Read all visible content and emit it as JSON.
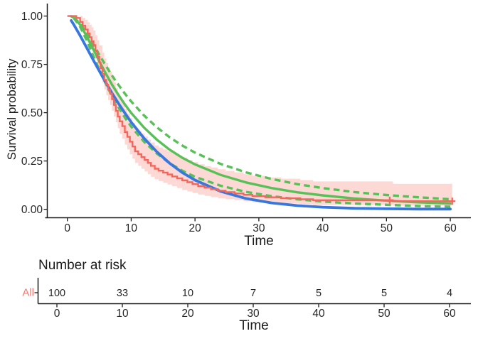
{
  "figure": {
    "y_axis": {
      "title": "Survival probability",
      "tick_labels": [
        "0.00",
        "0.25",
        "0.50",
        "0.75",
        "1.00"
      ],
      "tick_values": [
        0,
        0.25,
        0.5,
        0.75,
        1.0
      ]
    },
    "x_axis": {
      "title": "Time",
      "tick_labels": [
        "0",
        "10",
        "20",
        "30",
        "40",
        "50",
        "60"
      ],
      "tick_values": [
        0,
        10,
        20,
        30,
        40,
        50,
        60
      ]
    },
    "risk_table": {
      "title": "Number at risk",
      "row_label": "All",
      "values": [
        "100",
        "33",
        "10",
        "7",
        "5",
        "5",
        "4"
      ],
      "value_times": [
        0,
        10,
        20,
        30,
        40,
        50,
        60
      ],
      "x_axis_title": "Time",
      "tick_labels": [
        "0",
        "10",
        "20",
        "30",
        "40",
        "50",
        "60"
      ]
    },
    "colors": {
      "km_line": "#F4655C",
      "km_label": "#F8766D",
      "ci_fill": "#F8766D",
      "ci_opacity": 0.28,
      "fit_blue": "#3777DE",
      "fit_green": "#57C157",
      "axis": "#1a1a1a",
      "tick_text": "#262626"
    }
  },
  "chart_data": {
    "type": "line",
    "title": "",
    "xlabel": "Time",
    "ylabel": "Survival probability",
    "xlim": [
      0,
      60
    ],
    "ylim": [
      0,
      1
    ],
    "x_ticks": [
      0,
      10,
      20,
      30,
      40,
      50,
      60
    ],
    "y_ticks": [
      0,
      0.25,
      0.5,
      0.75,
      1.0
    ],
    "grid": false,
    "legend": "none",
    "series": [
      {
        "name": "kaplan-meier-estimate",
        "style": "step",
        "color": "#F4655C",
        "points": [
          [
            0,
            1
          ],
          [
            1.4,
            0.99
          ],
          [
            2,
            0.97
          ],
          [
            2.4,
            0.95
          ],
          [
            2.8,
            0.93
          ],
          [
            3.2,
            0.91
          ],
          [
            3.5,
            0.89
          ],
          [
            3.8,
            0.87
          ],
          [
            4.1,
            0.85
          ],
          [
            4.4,
            0.82
          ],
          [
            4.7,
            0.79
          ],
          [
            5,
            0.76
          ],
          [
            5.2,
            0.73
          ],
          [
            5.5,
            0.7
          ],
          [
            5.8,
            0.67
          ],
          [
            6.1,
            0.645
          ],
          [
            6.4,
            0.62
          ],
          [
            6.7,
            0.6
          ],
          [
            7,
            0.57
          ],
          [
            7.3,
            0.54
          ],
          [
            7.6,
            0.51
          ],
          [
            7.9,
            0.48
          ],
          [
            8.2,
            0.455
          ],
          [
            8.6,
            0.43
          ],
          [
            9,
            0.4
          ],
          [
            9.4,
            0.375
          ],
          [
            9.8,
            0.35
          ],
          [
            10.2,
            0.325
          ],
          [
            10.6,
            0.3
          ],
          [
            11.1,
            0.285
          ],
          [
            11.6,
            0.27
          ],
          [
            12.1,
            0.255
          ],
          [
            12.6,
            0.24
          ],
          [
            13.1,
            0.225
          ],
          [
            13.7,
            0.21
          ],
          [
            14.3,
            0.2
          ],
          [
            15,
            0.19
          ],
          [
            15.7,
            0.18
          ],
          [
            16.4,
            0.17
          ],
          [
            17.2,
            0.16
          ],
          [
            18,
            0.15
          ],
          [
            18.8,
            0.14
          ],
          [
            19.6,
            0.13
          ],
          [
            20.5,
            0.12
          ],
          [
            21.5,
            0.112
          ],
          [
            22.5,
            0.104
          ],
          [
            23.6,
            0.096
          ],
          [
            24.8,
            0.089
          ],
          [
            26.2,
            0.082
          ],
          [
            27.6,
            0.075
          ],
          [
            29,
            0.068
          ],
          [
            31,
            0.062
          ],
          [
            33.5,
            0.057
          ],
          [
            36.5,
            0.052
          ],
          [
            38.5,
            0.047
          ],
          [
            51,
            0.042
          ],
          [
            60.3,
            0.042
          ]
        ],
        "censor_marks": [
          [
            50.5,
            0.047
          ],
          [
            60.3,
            0.042
          ]
        ]
      },
      {
        "name": "kaplan-meier-confidence-band",
        "style": "step-band",
        "color": "#F8766D",
        "opacity": 0.28,
        "upper": [
          [
            0,
            1
          ],
          [
            2,
            1
          ],
          [
            2.4,
            0.99
          ],
          [
            2.8,
            0.98
          ],
          [
            3.2,
            0.968
          ],
          [
            3.5,
            0.955
          ],
          [
            3.8,
            0.942
          ],
          [
            4.1,
            0.925
          ],
          [
            4.4,
            0.9
          ],
          [
            4.7,
            0.875
          ],
          [
            5,
            0.848
          ],
          [
            5.5,
            0.81
          ],
          [
            5.8,
            0.78
          ],
          [
            6.1,
            0.757
          ],
          [
            6.4,
            0.735
          ],
          [
            6.7,
            0.713
          ],
          [
            7,
            0.685
          ],
          [
            7.3,
            0.657
          ],
          [
            7.6,
            0.628
          ],
          [
            7.9,
            0.598
          ],
          [
            8.2,
            0.573
          ],
          [
            8.6,
            0.548
          ],
          [
            9,
            0.52
          ],
          [
            9.4,
            0.496
          ],
          [
            9.8,
            0.472
          ],
          [
            10.2,
            0.447
          ],
          [
            10.6,
            0.422
          ],
          [
            11.1,
            0.407
          ],
          [
            11.6,
            0.392
          ],
          [
            12.1,
            0.377
          ],
          [
            12.6,
            0.361
          ],
          [
            13.1,
            0.346
          ],
          [
            13.7,
            0.33
          ],
          [
            14.3,
            0.32
          ],
          [
            15,
            0.31
          ],
          [
            15.7,
            0.3
          ],
          [
            16.4,
            0.289
          ],
          [
            17.2,
            0.278
          ],
          [
            18,
            0.267
          ],
          [
            18.8,
            0.256
          ],
          [
            19.6,
            0.244
          ],
          [
            20.5,
            0.233
          ],
          [
            21.5,
            0.224
          ],
          [
            22.5,
            0.216
          ],
          [
            23.6,
            0.207
          ],
          [
            24.8,
            0.199
          ],
          [
            26.2,
            0.191
          ],
          [
            27.6,
            0.182
          ],
          [
            29,
            0.173
          ],
          [
            31,
            0.165
          ],
          [
            33.5,
            0.158
          ],
          [
            36.5,
            0.151
          ],
          [
            38.5,
            0.144
          ],
          [
            51,
            0.132
          ],
          [
            60.3,
            0.132
          ]
        ],
        "lower": [
          [
            0,
            1
          ],
          [
            2,
            0.94
          ],
          [
            2.4,
            0.925
          ],
          [
            2.8,
            0.905
          ],
          [
            3.2,
            0.885
          ],
          [
            3.5,
            0.863
          ],
          [
            3.8,
            0.84
          ],
          [
            4.1,
            0.815
          ],
          [
            4.4,
            0.78
          ],
          [
            4.7,
            0.745
          ],
          [
            5,
            0.71
          ],
          [
            5.5,
            0.655
          ],
          [
            5.8,
            0.62
          ],
          [
            6.1,
            0.59
          ],
          [
            6.4,
            0.565
          ],
          [
            6.7,
            0.54
          ],
          [
            7,
            0.51
          ],
          [
            7.3,
            0.48
          ],
          [
            7.6,
            0.45
          ],
          [
            7.9,
            0.42
          ],
          [
            8.2,
            0.39
          ],
          [
            8.6,
            0.365
          ],
          [
            9,
            0.335
          ],
          [
            9.4,
            0.31
          ],
          [
            9.8,
            0.285
          ],
          [
            10.2,
            0.262
          ],
          [
            10.6,
            0.24
          ],
          [
            11.1,
            0.225
          ],
          [
            11.6,
            0.21
          ],
          [
            12.1,
            0.196
          ],
          [
            12.6,
            0.182
          ],
          [
            13.1,
            0.168
          ],
          [
            13.7,
            0.155
          ],
          [
            14.3,
            0.146
          ],
          [
            15,
            0.137
          ],
          [
            15.7,
            0.128
          ],
          [
            16.4,
            0.119
          ],
          [
            17.2,
            0.11
          ],
          [
            18,
            0.101
          ],
          [
            18.8,
            0.092
          ],
          [
            19.6,
            0.084
          ],
          [
            20.5,
            0.076
          ],
          [
            21.5,
            0.069
          ],
          [
            22.5,
            0.063
          ],
          [
            23.6,
            0.057
          ],
          [
            24.8,
            0.052
          ],
          [
            26.2,
            0.047
          ],
          [
            27.6,
            0.042
          ],
          [
            29,
            0.037
          ],
          [
            31,
            0.033
          ],
          [
            33.5,
            0.029
          ],
          [
            36.5,
            0.026
          ],
          [
            38.5,
            0.022
          ],
          [
            51,
            0.019
          ],
          [
            60.3,
            0.019
          ]
        ]
      },
      {
        "name": "parametric-fit-blue",
        "style": "smooth",
        "color": "#3777DE",
        "width": 3.8,
        "points": [
          [
            0.6,
            0.977
          ],
          [
            1,
            0.956
          ],
          [
            2,
            0.899
          ],
          [
            3,
            0.838
          ],
          [
            4,
            0.776
          ],
          [
            5,
            0.716
          ],
          [
            6,
            0.657
          ],
          [
            7,
            0.601
          ],
          [
            8,
            0.548
          ],
          [
            9,
            0.498
          ],
          [
            10,
            0.451
          ],
          [
            12,
            0.368
          ],
          [
            14,
            0.298
          ],
          [
            16,
            0.239
          ],
          [
            18,
            0.19
          ],
          [
            20,
            0.151
          ],
          [
            24,
            0.093
          ],
          [
            28,
            0.056
          ],
          [
            32,
            0.033
          ],
          [
            36,
            0.019
          ],
          [
            40,
            0.011
          ],
          [
            45,
            0.005
          ],
          [
            50,
            0.003
          ],
          [
            55,
            0.001
          ],
          [
            60,
            0.001
          ]
        ]
      },
      {
        "name": "parametric-fit-green",
        "style": "smooth",
        "color": "#57C157",
        "width": 3.4,
        "points": [
          [
            0.6,
            0.999
          ],
          [
            1,
            0.992
          ],
          [
            2,
            0.955
          ],
          [
            3,
            0.897
          ],
          [
            4,
            0.832
          ],
          [
            5,
            0.766
          ],
          [
            6,
            0.704
          ],
          [
            7,
            0.645
          ],
          [
            8,
            0.592
          ],
          [
            9,
            0.543
          ],
          [
            10,
            0.499
          ],
          [
            12,
            0.423
          ],
          [
            14,
            0.361
          ],
          [
            16,
            0.309
          ],
          [
            18,
            0.267
          ],
          [
            20,
            0.232
          ],
          [
            24,
            0.178
          ],
          [
            28,
            0.139
          ],
          [
            32,
            0.11
          ],
          [
            36,
            0.088
          ],
          [
            40,
            0.072
          ],
          [
            45,
            0.056
          ],
          [
            50,
            0.045
          ],
          [
            55,
            0.036
          ],
          [
            60,
            0.03
          ]
        ]
      },
      {
        "name": "parametric-fit-green-upper-ci",
        "style": "dashed",
        "color": "#57C157",
        "width": 3.4,
        "points": [
          [
            1,
            0.993
          ],
          [
            2,
            0.962
          ],
          [
            3,
            0.913
          ],
          [
            4,
            0.857
          ],
          [
            5,
            0.799
          ],
          [
            6,
            0.745
          ],
          [
            7,
            0.692
          ],
          [
            8,
            0.644
          ],
          [
            9,
            0.599
          ],
          [
            10,
            0.558
          ],
          [
            12,
            0.486
          ],
          [
            14,
            0.425
          ],
          [
            16,
            0.373
          ],
          [
            18,
            0.33
          ],
          [
            20,
            0.293
          ],
          [
            24,
            0.235
          ],
          [
            28,
            0.191
          ],
          [
            32,
            0.157
          ],
          [
            36,
            0.13
          ],
          [
            40,
            0.11
          ],
          [
            45,
            0.089
          ],
          [
            50,
            0.074
          ],
          [
            55,
            0.062
          ],
          [
            60,
            0.052
          ]
        ]
      },
      {
        "name": "parametric-fit-green-lower-ci",
        "style": "dashed",
        "color": "#57C157",
        "width": 3.4,
        "points": [
          [
            1,
            0.99
          ],
          [
            2,
            0.945
          ],
          [
            3,
            0.876
          ],
          [
            4,
            0.799
          ],
          [
            5,
            0.723
          ],
          [
            6,
            0.652
          ],
          [
            7,
            0.586
          ],
          [
            8,
            0.528
          ],
          [
            9,
            0.475
          ],
          [
            10,
            0.428
          ],
          [
            12,
            0.35
          ],
          [
            14,
            0.289
          ],
          [
            16,
            0.239
          ],
          [
            18,
            0.2
          ],
          [
            20,
            0.168
          ],
          [
            24,
            0.122
          ],
          [
            28,
            0.09
          ],
          [
            32,
            0.068
          ],
          [
            36,
            0.052
          ],
          [
            40,
            0.04
          ],
          [
            45,
            0.03
          ],
          [
            50,
            0.023
          ],
          [
            55,
            0.017
          ],
          [
            60,
            0.014
          ]
        ]
      }
    ],
    "risk_table": {
      "title": "Number at risk",
      "strata": [
        {
          "label": "All",
          "times": [
            0,
            10,
            20,
            30,
            40,
            50,
            60
          ],
          "n_risk": [
            100,
            33,
            10,
            7,
            5,
            5,
            4
          ]
        }
      ]
    }
  }
}
